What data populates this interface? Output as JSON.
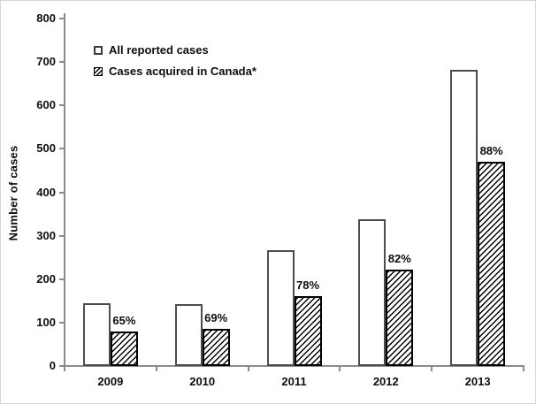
{
  "chart_data": {
    "type": "bar",
    "title": "",
    "xlabel": "",
    "ylabel": "Number of cases",
    "ylim": [
      0,
      800
    ],
    "yticks": [
      0,
      100,
      200,
      300,
      400,
      500,
      600,
      700,
      800
    ],
    "grid": false,
    "legend_position": "top-left-inside",
    "categories": [
      "2009",
      "2010",
      "2011",
      "2012",
      "2013"
    ],
    "series": [
      {
        "name": "All reported cases",
        "style": "open",
        "values": [
          144,
          143,
          266,
          338,
          682
        ]
      },
      {
        "name": "Cases acquired in Canada*",
        "style": "hatched",
        "values": [
          80,
          86,
          160,
          222,
          470
        ]
      }
    ],
    "bar_labels": {
      "attached_to_series": "Cases acquired in Canada*",
      "values": [
        "65%",
        "69%",
        "78%",
        "82%",
        "88%"
      ]
    }
  },
  "colors": {
    "background": "#ffffff",
    "frame_border": "#d6d6d6",
    "axis": "#8a8a8a",
    "text": "#0d0d0d",
    "open_bar_fill": "#ffffff",
    "open_bar_border": "#4d4d4d",
    "hatched_bar_border": "#000000",
    "hatch_line": "#000000"
  }
}
